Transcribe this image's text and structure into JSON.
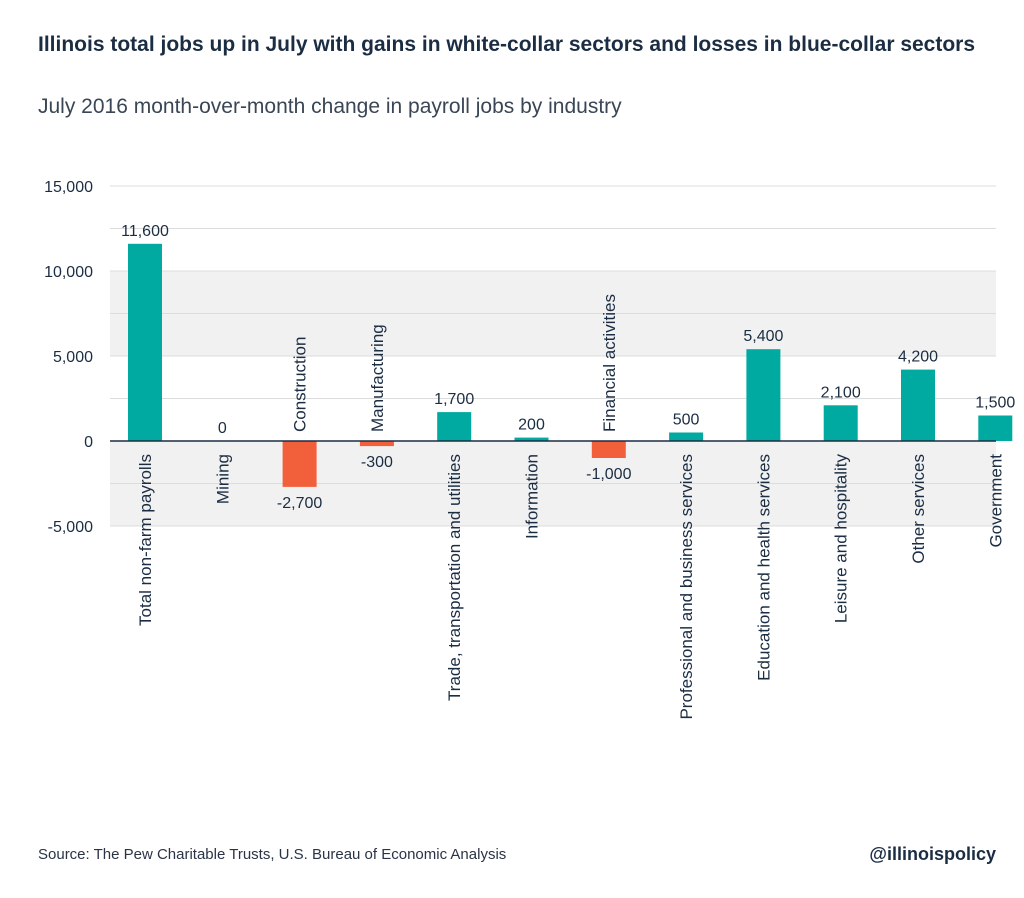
{
  "title": "Illinois total jobs up in July with gains in white-collar sectors and losses in blue-collar sectors",
  "subtitle": "July 2016 month-over-month change in payroll jobs by industry",
  "source": "Source: The Pew Charitable Trusts, U.S. Bureau of Economic Analysis",
  "handle": "@illinoispolicy",
  "colors": {
    "positive": "#00aaa0",
    "negative": "#f2603b",
    "band": "#f1f1f1",
    "grid": "#dcdcdc",
    "axis": "#1b2d43"
  },
  "chart_data": {
    "type": "bar",
    "title": "Illinois total jobs up in July with gains in white-collar sectors and losses in blue-collar sectors",
    "subtitle": "July 2016 month-over-month change in payroll jobs by industry",
    "categories": [
      "Total non-farm payrolls",
      "Mining",
      "Construction",
      "Manufacturing",
      "Trade, transportation and utilities",
      "Information",
      "Financial activities",
      "Professional and business services",
      "Education and health services",
      "Leisure and hospitality",
      "Other services",
      "Government"
    ],
    "values": [
      11600,
      0,
      -2700,
      -300,
      1700,
      200,
      -1000,
      500,
      5400,
      2100,
      4200,
      1500
    ],
    "value_labels": [
      "11,600",
      "0",
      "-2,700",
      "-300",
      "1,700",
      "200",
      "-1,000",
      "500",
      "5,400",
      "2,100",
      "4,200",
      "1,500"
    ],
    "yticks": [
      15000,
      10000,
      5000,
      0,
      -5000
    ],
    "ytick_labels": [
      "15,000",
      "10,000",
      "5,000",
      "0",
      "-5,000"
    ],
    "ylim": [
      -5000,
      15000
    ],
    "xlabel": "",
    "ylabel": "",
    "grid": true
  }
}
